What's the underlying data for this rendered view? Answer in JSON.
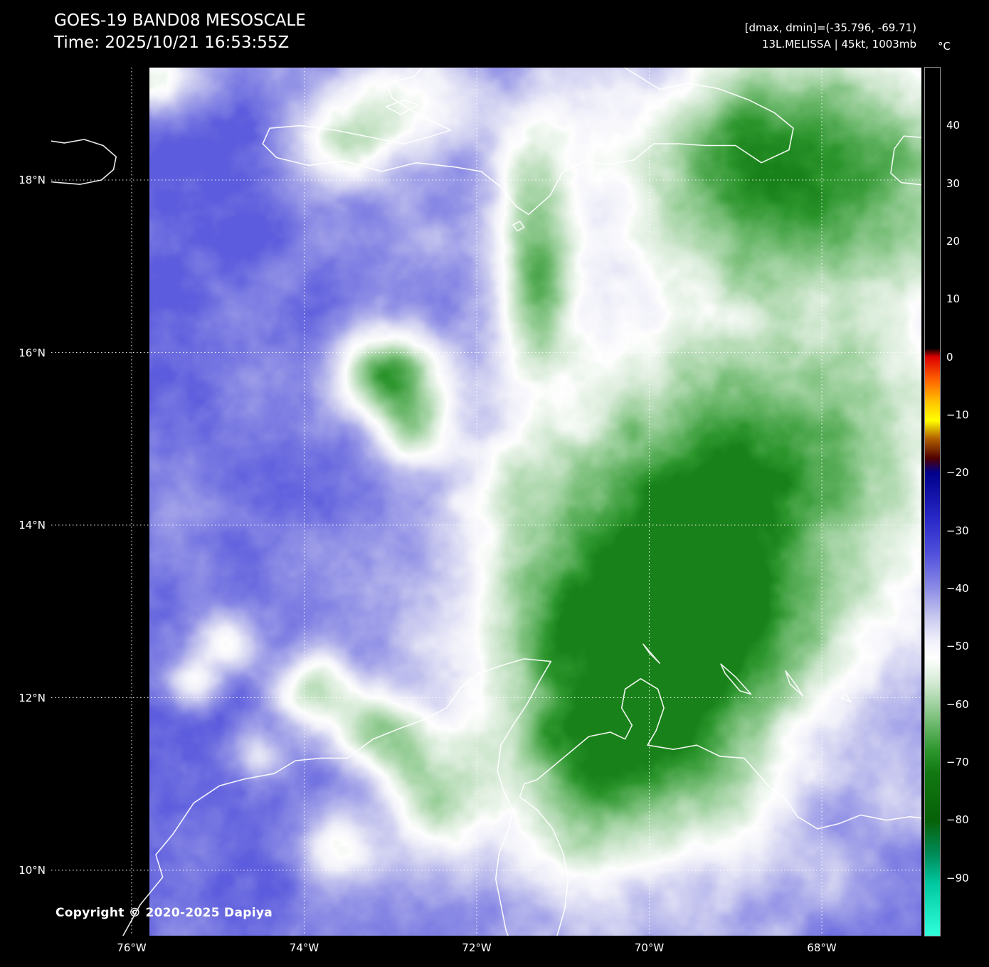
{
  "header": {
    "title": "GOES-19 BAND08 MESOSCALE",
    "time_line": "Time: 2025/10/21 16:53:55Z",
    "stats_line": "[dmax, dmin]=(-35.796, -69.71)",
    "storm_line": "13L.MELISSA | 45kt, 1003mb"
  },
  "footer": {
    "copyright": "Copyright © 2020-2025 Dapiya"
  },
  "colorbar": {
    "unit": "°C",
    "ticks": [
      "40",
      "30",
      "20",
      "10",
      "0",
      "−10",
      "−20",
      "−30",
      "−40",
      "−50",
      "−60",
      "−70",
      "−80",
      "−90"
    ],
    "range_c": [
      50,
      -100
    ],
    "palette_stops": [
      {
        "t": 50,
        "color": "#000000"
      },
      {
        "t": 1.5,
        "color": "#000000"
      },
      {
        "t": 0,
        "color": "#dc0000"
      },
      {
        "t": -4,
        "color": "#ff6400"
      },
      {
        "t": -8,
        "color": "#ffc800"
      },
      {
        "t": -11,
        "color": "#ffff00"
      },
      {
        "t": -14,
        "color": "#b46400"
      },
      {
        "t": -17.5,
        "color": "#500000"
      },
      {
        "t": -20,
        "color": "#00008c"
      },
      {
        "t": -28,
        "color": "#2828c8"
      },
      {
        "t": -34,
        "color": "#5050dc"
      },
      {
        "t": -40,
        "color": "#8c8ce6"
      },
      {
        "t": -45,
        "color": "#c8c8f0"
      },
      {
        "t": -49,
        "color": "#f0f0fa"
      },
      {
        "t": -52,
        "color": "#ffffff"
      },
      {
        "t": -56,
        "color": "#d7ebd7"
      },
      {
        "t": -60,
        "color": "#a0d2a0"
      },
      {
        "t": -64,
        "color": "#64b464"
      },
      {
        "t": -68,
        "color": "#2d962d"
      },
      {
        "t": -72,
        "color": "#117811"
      },
      {
        "t": -80,
        "color": "#076107"
      },
      {
        "t": -86,
        "color": "#008c5a"
      },
      {
        "t": -91,
        "color": "#00c8a0"
      },
      {
        "t": -100,
        "color": "#30ffdc"
      }
    ]
  },
  "axes": {
    "lat_ticks": [
      "18°N",
      "16°N",
      "14°N",
      "12°N",
      "10°N"
    ],
    "lon_ticks": [
      "76°W",
      "74°W",
      "72°W",
      "70°W",
      "68°W"
    ],
    "lat_values": [
      18,
      16,
      14,
      12,
      10
    ],
    "lon_values": [
      76,
      74,
      72,
      70,
      68
    ]
  },
  "map": {
    "bounds": {
      "lon_west": 76.932,
      "lon_east": 66.845,
      "lat_north": 19.303,
      "lat_south": 9.241
    },
    "coastlines": [
      {
        "name": "jamaica-east",
        "closed": false,
        "pts": [
          [
            77.05,
            17.99
          ],
          [
            76.85,
            17.97
          ],
          [
            76.6,
            17.95
          ],
          [
            76.35,
            18.0
          ],
          [
            76.21,
            18.12
          ],
          [
            76.18,
            18.27
          ],
          [
            76.33,
            18.4
          ],
          [
            76.55,
            18.47
          ],
          [
            76.78,
            18.43
          ],
          [
            77.05,
            18.47
          ]
        ]
      },
      {
        "name": "hispaniola",
        "closed": false,
        "pts": [
          [
            72.55,
            19.4
          ],
          [
            72.72,
            19.2
          ],
          [
            73.05,
            19.12
          ],
          [
            72.98,
            18.95
          ],
          [
            72.78,
            18.82
          ],
          [
            72.52,
            18.68
          ],
          [
            72.3,
            18.58
          ],
          [
            72.55,
            18.5
          ],
          [
            72.85,
            18.42
          ],
          [
            73.25,
            18.5
          ],
          [
            73.65,
            18.58
          ],
          [
            74.05,
            18.63
          ],
          [
            74.4,
            18.6
          ],
          [
            74.48,
            18.42
          ],
          [
            74.32,
            18.26
          ],
          [
            73.95,
            18.17
          ],
          [
            73.55,
            18.22
          ],
          [
            73.1,
            18.1
          ],
          [
            72.7,
            18.2
          ],
          [
            72.25,
            18.15
          ],
          [
            71.95,
            18.1
          ],
          [
            71.72,
            17.92
          ],
          [
            71.55,
            17.7
          ],
          [
            71.4,
            17.6
          ],
          [
            71.15,
            17.82
          ],
          [
            71.0,
            18.1
          ],
          [
            70.75,
            18.22
          ],
          [
            70.5,
            18.18
          ],
          [
            70.18,
            18.23
          ],
          [
            69.95,
            18.42
          ],
          [
            69.65,
            18.42
          ],
          [
            69.35,
            18.4
          ],
          [
            69.0,
            18.4
          ],
          [
            68.7,
            18.2
          ],
          [
            68.38,
            18.35
          ],
          [
            68.33,
            18.6
          ],
          [
            68.55,
            18.78
          ],
          [
            68.85,
            18.93
          ],
          [
            69.2,
            19.06
          ],
          [
            69.55,
            19.12
          ],
          [
            69.88,
            19.05
          ],
          [
            70.15,
            19.22
          ],
          [
            70.45,
            19.4
          ]
        ]
      },
      {
        "name": "gonave-island",
        "closed": true,
        "pts": [
          [
            73.05,
            18.85
          ],
          [
            72.83,
            18.93
          ],
          [
            72.68,
            18.87
          ],
          [
            72.88,
            18.76
          ]
        ]
      },
      {
        "name": "puerto-rico-west",
        "closed": false,
        "pts": [
          [
            66.8,
            18.49
          ],
          [
            67.05,
            18.51
          ],
          [
            67.16,
            18.36
          ],
          [
            67.2,
            18.08
          ],
          [
            67.08,
            17.97
          ],
          [
            66.8,
            17.94
          ]
        ]
      },
      {
        "name": "beata-island",
        "closed": true,
        "pts": [
          [
            71.58,
            17.48
          ],
          [
            71.5,
            17.52
          ],
          [
            71.45,
            17.45
          ],
          [
            71.53,
            17.41
          ]
        ]
      },
      {
        "name": "colombia-guajira-maracaibo-west",
        "closed": false,
        "pts": [
          [
            76.1,
            9.24
          ],
          [
            75.9,
            9.6
          ],
          [
            75.64,
            9.92
          ],
          [
            75.72,
            10.18
          ],
          [
            75.52,
            10.42
          ],
          [
            75.28,
            10.78
          ],
          [
            74.98,
            10.98
          ],
          [
            74.68,
            11.06
          ],
          [
            74.35,
            11.12
          ],
          [
            74.1,
            11.27
          ],
          [
            73.8,
            11.3
          ],
          [
            73.5,
            11.3
          ],
          [
            73.2,
            11.52
          ],
          [
            72.9,
            11.64
          ],
          [
            72.6,
            11.75
          ],
          [
            72.35,
            11.88
          ],
          [
            72.18,
            12.12
          ],
          [
            71.98,
            12.28
          ],
          [
            71.72,
            12.37
          ],
          [
            71.45,
            12.45
          ],
          [
            71.14,
            12.42
          ],
          [
            71.28,
            12.18
          ],
          [
            71.42,
            11.92
          ],
          [
            71.58,
            11.68
          ],
          [
            71.72,
            11.45
          ],
          [
            71.76,
            11.15
          ],
          [
            71.68,
            10.9
          ],
          [
            71.58,
            10.7
          ],
          [
            71.64,
            10.45
          ],
          [
            71.74,
            10.2
          ],
          [
            71.78,
            9.9
          ],
          [
            71.72,
            9.6
          ],
          [
            71.66,
            9.3
          ],
          [
            71.62,
            9.2
          ]
        ]
      },
      {
        "name": "venezuela-coast-paraguana",
        "closed": false,
        "pts": [
          [
            71.08,
            9.2
          ],
          [
            70.98,
            9.55
          ],
          [
            70.94,
            9.9
          ],
          [
            71.0,
            10.2
          ],
          [
            71.12,
            10.48
          ],
          [
            71.3,
            10.7
          ],
          [
            71.5,
            10.85
          ],
          [
            71.45,
            11.0
          ],
          [
            71.3,
            11.05
          ],
          [
            71.0,
            11.3
          ],
          [
            70.7,
            11.55
          ],
          [
            70.45,
            11.6
          ],
          [
            70.28,
            11.52
          ],
          [
            70.2,
            11.68
          ],
          [
            70.32,
            11.88
          ],
          [
            70.28,
            12.1
          ],
          [
            70.1,
            12.22
          ],
          [
            69.9,
            12.1
          ],
          [
            69.83,
            11.88
          ],
          [
            69.92,
            11.62
          ],
          [
            70.02,
            11.45
          ],
          [
            69.72,
            11.4
          ],
          [
            69.45,
            11.45
          ],
          [
            69.18,
            11.32
          ],
          [
            68.9,
            11.3
          ],
          [
            68.62,
            10.98
          ],
          [
            68.42,
            10.82
          ],
          [
            68.28,
            10.62
          ],
          [
            68.05,
            10.48
          ],
          [
            67.8,
            10.54
          ],
          [
            67.55,
            10.64
          ],
          [
            67.25,
            10.58
          ],
          [
            66.98,
            10.62
          ],
          [
            66.8,
            10.6
          ]
        ]
      },
      {
        "name": "aruba",
        "closed": true,
        "pts": [
          [
            70.07,
            12.62
          ],
          [
            69.95,
            12.48
          ],
          [
            69.88,
            12.4
          ],
          [
            70.0,
            12.52
          ]
        ]
      },
      {
        "name": "curacao",
        "closed": true,
        "pts": [
          [
            69.17,
            12.39
          ],
          [
            69.0,
            12.24
          ],
          [
            68.82,
            12.04
          ],
          [
            68.95,
            12.08
          ],
          [
            69.12,
            12.28
          ]
        ]
      },
      {
        "name": "bonaire",
        "closed": true,
        "pts": [
          [
            68.42,
            12.31
          ],
          [
            68.3,
            12.15
          ],
          [
            68.22,
            12.02
          ],
          [
            68.37,
            12.16
          ]
        ]
      },
      {
        "name": "las-aves",
        "closed": true,
        "pts": [
          [
            67.78,
            12.0
          ],
          [
            67.66,
            11.95
          ],
          [
            67.72,
            12.04
          ]
        ]
      }
    ]
  },
  "imagery": {
    "lon_west_data": 75.794,
    "background_temp_c": -37,
    "noise_amp_c": 6,
    "fine_noise_amp_c": 2.6,
    "clamp_c": [
      -70.8,
      -35.3
    ],
    "cells": [
      {
        "lonw": 69.7,
        "lat": 13.4,
        "slon": 2.35,
        "slat": 2.9,
        "dt": -34
      },
      {
        "lonw": 69.4,
        "lat": 13.3,
        "slon": 1.05,
        "slat": 1.25,
        "dt": -7
      },
      {
        "lonw": 70.9,
        "lat": 12.85,
        "slon": 0.45,
        "slat": 0.4,
        "dt": -6
      },
      {
        "lonw": 68.2,
        "lat": 18.3,
        "slon": 2.3,
        "slat": 1.7,
        "dt": -28
      },
      {
        "lonw": 67.0,
        "lat": 15.3,
        "slon": 2.0,
        "slat": 2.6,
        "dt": -12
      },
      {
        "lonw": 73.05,
        "lat": 15.75,
        "slon": 0.6,
        "slat": 0.55,
        "dt": -26
      },
      {
        "lonw": 72.7,
        "lat": 15.05,
        "slon": 0.42,
        "slat": 0.42,
        "dt": -14
      },
      {
        "lonw": 71.35,
        "lat": 17.6,
        "slon": 0.5,
        "slat": 1.1,
        "dt": -18
      },
      {
        "lonw": 71.3,
        "lat": 16.5,
        "slon": 0.45,
        "slat": 0.8,
        "dt": -14
      },
      {
        "lonw": 72.9,
        "lat": 18.9,
        "slon": 1.0,
        "slat": 0.65,
        "dt": -16
      },
      {
        "lonw": 73.6,
        "lat": 18.35,
        "slon": 0.7,
        "slat": 0.45,
        "dt": -12
      },
      {
        "lonw": 75.9,
        "lat": 19.2,
        "slon": 0.6,
        "slat": 0.4,
        "dt": -16
      },
      {
        "lonw": 70.6,
        "lat": 11.2,
        "slon": 1.4,
        "slat": 1.5,
        "dt": -16
      },
      {
        "lonw": 74.9,
        "lat": 12.6,
        "slon": 0.4,
        "slat": 0.35,
        "dt": -16
      },
      {
        "lonw": 75.35,
        "lat": 12.15,
        "slon": 0.35,
        "slat": 0.3,
        "dt": -13
      },
      {
        "lonw": 73.95,
        "lat": 12.1,
        "slon": 0.5,
        "slat": 0.45,
        "dt": -18
      },
      {
        "lonw": 73.1,
        "lat": 11.55,
        "slon": 0.55,
        "slat": 0.5,
        "dt": -20
      },
      {
        "lonw": 72.5,
        "lat": 10.8,
        "slon": 0.55,
        "slat": 0.6,
        "dt": -18
      },
      {
        "lonw": 73.6,
        "lat": 10.3,
        "slon": 0.45,
        "slat": 0.5,
        "dt": -15
      },
      {
        "lonw": 74.5,
        "lat": 11.3,
        "slon": 0.35,
        "slat": 0.3,
        "dt": -11
      }
    ]
  }
}
